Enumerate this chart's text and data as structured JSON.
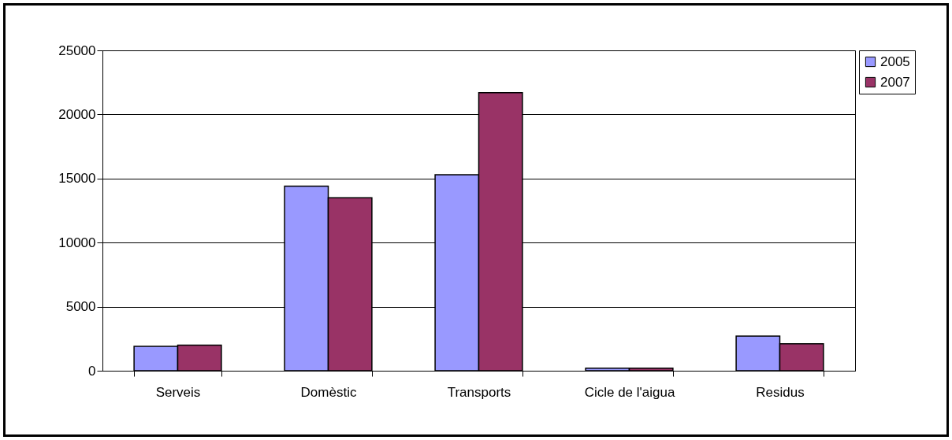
{
  "chart_data": {
    "type": "bar",
    "categories": [
      "Serveis",
      "Domèstic",
      "Transports",
      "Cicle de l'aigua",
      "Residus"
    ],
    "series": [
      {
        "name": "2005",
        "color": "#9999ff",
        "values": [
          1900,
          14400,
          15300,
          200,
          2700
        ]
      },
      {
        "name": "2007",
        "color": "#993366",
        "values": [
          2000,
          13500,
          21700,
          200,
          2100
        ]
      }
    ],
    "ylim": [
      0,
      25000
    ],
    "yticks": [
      0,
      5000,
      10000,
      15000,
      20000,
      25000
    ],
    "grid": "y",
    "legend": "right"
  }
}
